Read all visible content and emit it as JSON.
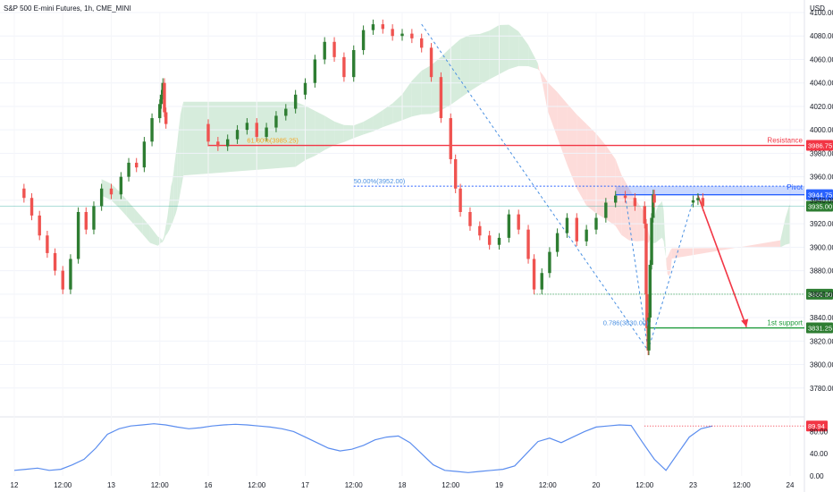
{
  "header": {
    "title": "S&P 500 E-mini Futures, 1h, CME_MINI",
    "currency": "USD"
  },
  "colors": {
    "up": "#26a69a",
    "upBody": "#2e7d32",
    "down": "#ef5350",
    "kumoBull": "#cfe9d6",
    "kumoBear": "#fdd6d3",
    "resistance": "#f23645",
    "support": "#1e9b3a",
    "pivot": "#2962ff",
    "fib": "#4a90e2",
    "rsi": "#5b8def"
  },
  "chart_data": {
    "type": "line",
    "title": "S&P 500 E-mini Futures, 1h, CME_MINI",
    "ylim": [
      3760,
      4100
    ],
    "y_ticks": [
      "4100.00",
      "4080.00",
      "4060.00",
      "4040.00",
      "4020.00",
      "4000.00",
      "3980.00",
      "3960.00",
      "3940.00",
      "3920.00",
      "3900.00",
      "3880.00",
      "3860.00",
      "3840.00",
      "3820.00",
      "3800.00",
      "3780.00"
    ],
    "x_ticks": [
      "12",
      "12:00",
      "13",
      "12:00",
      "16",
      "12:00",
      "17",
      "12:00",
      "18",
      "12:00",
      "19",
      "12:00",
      "20",
      "12:00",
      "23",
      "12:00",
      "24"
    ],
    "price_x_days": [
      12,
      12.5,
      13,
      13.5,
      16,
      16.5,
      17,
      17.5,
      18,
      18.5,
      19,
      19.5,
      20,
      20.5,
      23,
      23.5,
      24
    ],
    "series": [
      {
        "name": "",
        "points": [
          [
            12.0,
            3950
          ],
          [
            12.1,
            3942
          ],
          [
            12.18,
            3927
          ],
          [
            12.26,
            3910
          ],
          [
            12.34,
            3895
          ],
          [
            12.42,
            3880
          ],
          [
            12.5,
            3864
          ],
          [
            12.58,
            3890
          ],
          [
            12.66,
            3930
          ],
          [
            12.74,
            3915
          ],
          [
            12.82,
            3935
          ],
          [
            12.9,
            3950
          ],
          [
            13.0,
            3945
          ],
          [
            13.1,
            3960
          ],
          [
            13.18,
            3972
          ],
          [
            13.26,
            3968
          ],
          [
            13.34,
            3990
          ],
          [
            13.42,
            4010
          ],
          [
            13.5,
            4022
          ],
          [
            13.58,
            4030
          ],
          [
            13.66,
            4040
          ],
          [
            13.74,
            4015
          ],
          [
            13.82,
            4005
          ],
          [
            16.0,
            3990
          ],
          [
            16.1,
            3986
          ],
          [
            16.2,
            3992
          ],
          [
            16.3,
            4000
          ],
          [
            16.4,
            4006
          ],
          [
            16.5,
            3994
          ],
          [
            16.6,
            4002
          ],
          [
            16.7,
            4012
          ],
          [
            16.8,
            4018
          ],
          [
            16.9,
            4030
          ],
          [
            17.0,
            4040
          ],
          [
            17.1,
            4060
          ],
          [
            17.2,
            4075
          ],
          [
            17.3,
            4062
          ],
          [
            17.4,
            4045
          ],
          [
            17.5,
            4068
          ],
          [
            17.6,
            4085
          ],
          [
            17.7,
            4090
          ],
          [
            17.8,
            4086
          ],
          [
            17.9,
            4080
          ],
          [
            18.0,
            4082
          ],
          [
            18.1,
            4078
          ],
          [
            18.2,
            4070
          ],
          [
            18.3,
            4045
          ],
          [
            18.4,
            4010
          ],
          [
            18.5,
            3975
          ],
          [
            18.55,
            3950
          ],
          [
            18.6,
            3930
          ],
          [
            18.7,
            3918
          ],
          [
            18.8,
            3910
          ],
          [
            18.9,
            3902
          ],
          [
            19.0,
            3908
          ],
          [
            19.1,
            3928
          ],
          [
            19.2,
            3915
          ],
          [
            19.3,
            3890
          ],
          [
            19.36,
            3864
          ],
          [
            19.44,
            3878
          ],
          [
            19.52,
            3896
          ],
          [
            19.6,
            3912
          ],
          [
            19.7,
            3925
          ],
          [
            19.8,
            3905
          ],
          [
            19.9,
            3915
          ],
          [
            20.0,
            3925
          ],
          [
            20.1,
            3938
          ],
          [
            20.2,
            3944
          ],
          [
            20.3,
            3942
          ],
          [
            20.4,
            3935
          ],
          [
            20.5,
            3920
          ],
          [
            20.58,
            3860
          ],
          [
            20.62,
            3831
          ],
          [
            20.68,
            3812
          ],
          [
            20.72,
            3840
          ],
          [
            20.78,
            3885
          ],
          [
            20.86,
            3925
          ],
          [
            20.94,
            3945
          ],
          [
            21.0,
            3938
          ],
          [
            23.0,
            3940
          ],
          [
            23.05,
            3942
          ],
          [
            23.1,
            3935
          ]
        ]
      }
    ],
    "annotations": {
      "resistance": {
        "price": 3986.75,
        "price_label": "3986.75",
        "text": "Resistance",
        "fib_label": "61.80%(3985.25)"
      },
      "pivot": {
        "price": 3944.75,
        "price_label": "3944.75",
        "text": "Pivot",
        "fib_label": "50.00%(3952.00)"
      },
      "current_price": {
        "price": 3935.0,
        "price_label": "3935.00"
      },
      "support_2": {
        "price": 3860.0,
        "price_label": "3860.00"
      },
      "support_1": {
        "price": 3831.25,
        "price_label": "3831.25",
        "text": "1st support",
        "fib_label": "0.786(3830.00)"
      }
    },
    "rsi": {
      "ylim": [
        0,
        100
      ],
      "y_ticks": [
        "80.00",
        "40.00",
        "0.00"
      ],
      "last_label": "89.94",
      "values": [
        10,
        12,
        14,
        10,
        12,
        20,
        30,
        50,
        75,
        85,
        90,
        92,
        94,
        92,
        88,
        85,
        87,
        90,
        92,
        93,
        92,
        90,
        88,
        85,
        80,
        70,
        60,
        50,
        45,
        48,
        55,
        65,
        70,
        72,
        60,
        40,
        20,
        10,
        8,
        6,
        8,
        10,
        12,
        18,
        40,
        62,
        68,
        60,
        70,
        80,
        88,
        90,
        92,
        91,
        60,
        30,
        10,
        40,
        70,
        85,
        90
      ]
    }
  }
}
